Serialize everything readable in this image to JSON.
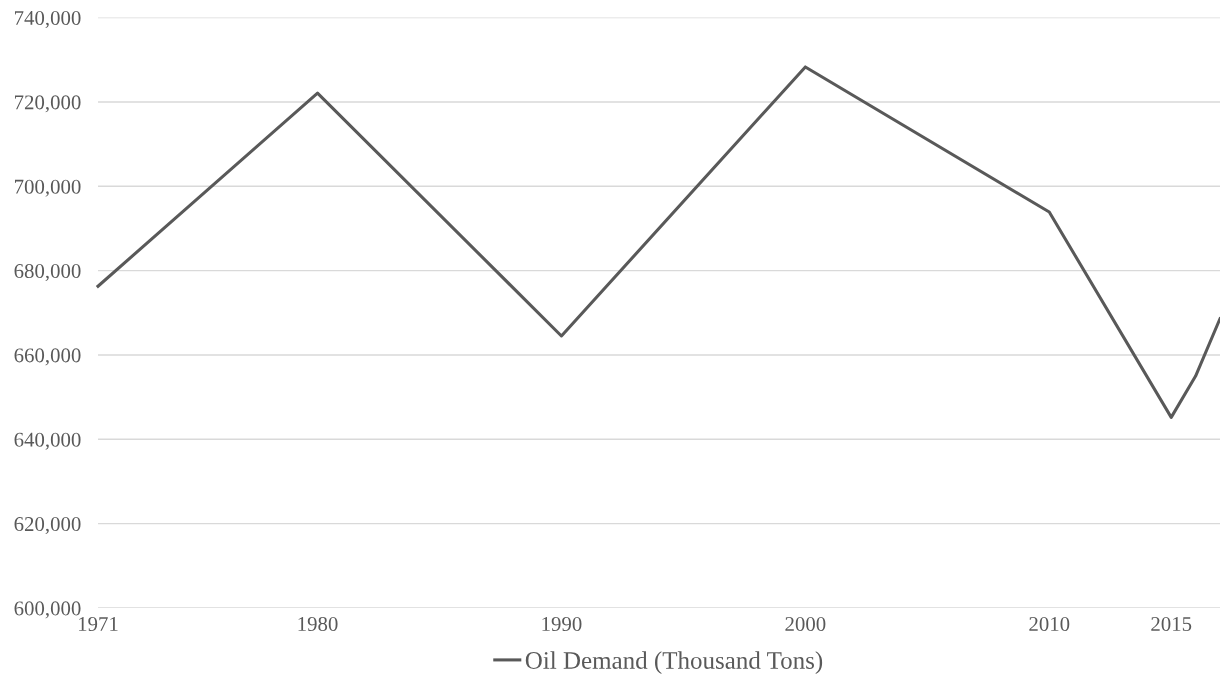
{
  "chart_data": {
    "type": "line",
    "x": [
      1971,
      1980,
      1990,
      2000,
      2010,
      2015,
      2016,
      2017
    ],
    "series": [
      {
        "name": "Oil Demand (Thousand Tons)",
        "color": "#595959",
        "values": [
          676300,
          722100,
          664500,
          728300,
          693900,
          645200,
          655000,
          668600
        ]
      }
    ],
    "xlim": [
      1971,
      2017
    ],
    "xticks": [
      1971,
      1980,
      1990,
      2000,
      2010,
      2015
    ],
    "ylim": [
      600000,
      740000
    ],
    "yticks": [
      {
        "value": 600000,
        "label": "600,000"
      },
      {
        "value": 620000,
        "label": "620,000"
      },
      {
        "value": 640000,
        "label": "640,000"
      },
      {
        "value": 660000,
        "label": "660,000"
      },
      {
        "value": 680000,
        "label": "680,000"
      },
      {
        "value": 700000,
        "label": "700,000"
      },
      {
        "value": 720000,
        "label": "720,000"
      },
      {
        "value": 740000,
        "label": "740,000"
      }
    ],
    "grid": "y",
    "legend": "bottom",
    "marker": "none",
    "line_style": "solid"
  }
}
